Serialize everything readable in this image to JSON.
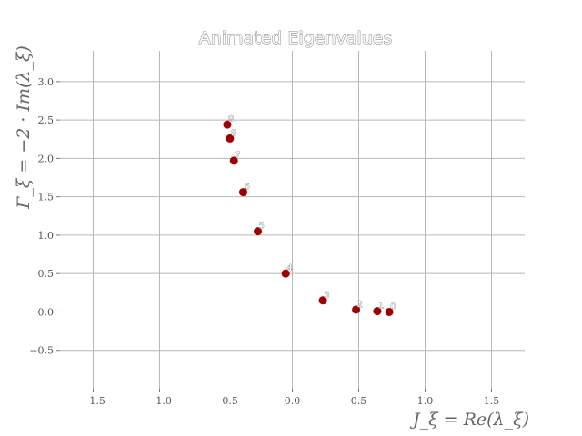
{
  "chart_data": {
    "type": "scatter",
    "title": "Animated Eigenvalues",
    "xlabel": "J_ξ = Re(λ_ξ)",
    "ylabel": "Γ_ξ = −2 · Im(λ_ξ)",
    "xlim": [
      -1.75,
      1.75
    ],
    "ylim": [
      -1.0,
      3.4
    ],
    "xticks": [
      -1.5,
      -1.0,
      -0.5,
      0.0,
      0.5,
      1.0,
      1.5
    ],
    "xtick_labels": [
      "−1.5",
      "−1.0",
      "−0.5",
      "0.0",
      "0.5",
      "1.0",
      "1.5"
    ],
    "yticks": [
      -0.5,
      0.0,
      0.5,
      1.0,
      1.5,
      2.0,
      2.5,
      3.0
    ],
    "ytick_labels": [
      "−0.5",
      "0.0",
      "0.5",
      "1.0",
      "1.5",
      "2.0",
      "2.5",
      "3.0"
    ],
    "grid": true,
    "marker_color": "#a00000",
    "points": [
      {
        "x": -0.49,
        "y": 2.44,
        "label": "9"
      },
      {
        "x": -0.47,
        "y": 2.26,
        "label": "8"
      },
      {
        "x": -0.44,
        "y": 1.97,
        "label": "7"
      },
      {
        "x": -0.37,
        "y": 1.56,
        "label": "6"
      },
      {
        "x": -0.26,
        "y": 1.05,
        "label": "5"
      },
      {
        "x": -0.05,
        "y": 0.5,
        "label": "4"
      },
      {
        "x": 0.23,
        "y": 0.15,
        "label": "3"
      },
      {
        "x": 0.48,
        "y": 0.03,
        "label": "2"
      },
      {
        "x": 0.64,
        "y": 0.01,
        "label": "1"
      },
      {
        "x": 0.73,
        "y": 0.0,
        "label": "0"
      }
    ]
  }
}
